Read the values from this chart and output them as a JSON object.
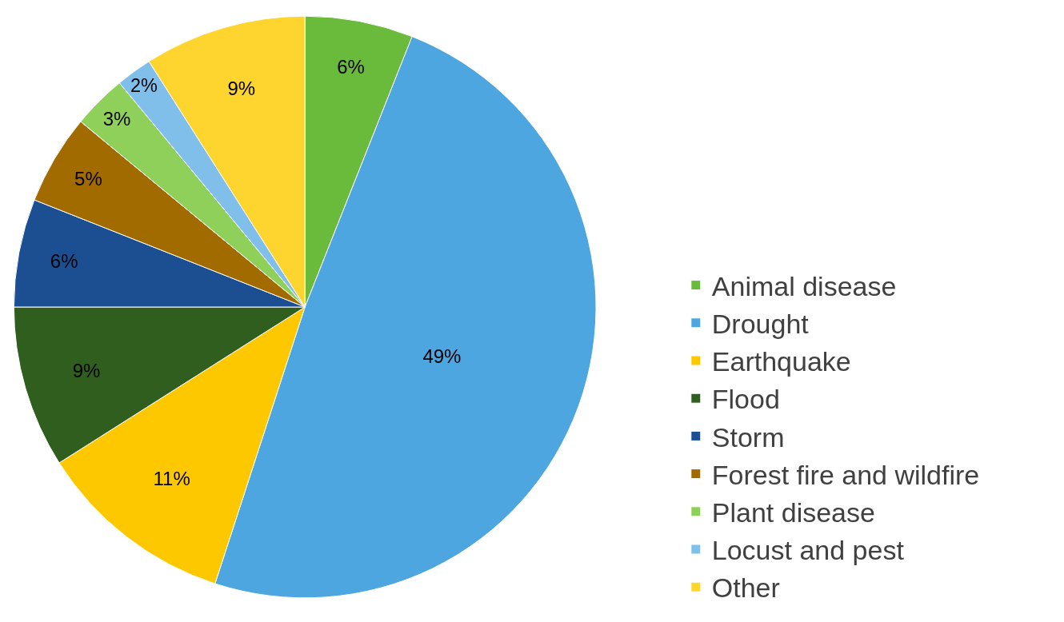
{
  "chart_data": {
    "type": "pie",
    "categories": [
      "Animal disease",
      "Drought",
      "Earthquake",
      "Flood",
      "Storm",
      "Forest fire and wildfire",
      "Plant disease",
      "Locust and pest",
      "Other"
    ],
    "values": [
      6,
      49,
      11,
      9,
      6,
      5,
      3,
      2,
      9
    ],
    "value_labels": [
      "6%",
      "49%",
      "11%",
      "9%",
      "6%",
      "5%",
      "3%",
      "2%",
      "9%"
    ],
    "colors": [
      "#6abb3c",
      "#4ea6e0",
      "#fdc800",
      "#2f5e1f",
      "#1b4f92",
      "#a16b00",
      "#8fd05a",
      "#80bfea",
      "#fdd52e"
    ],
    "legend": "right"
  }
}
